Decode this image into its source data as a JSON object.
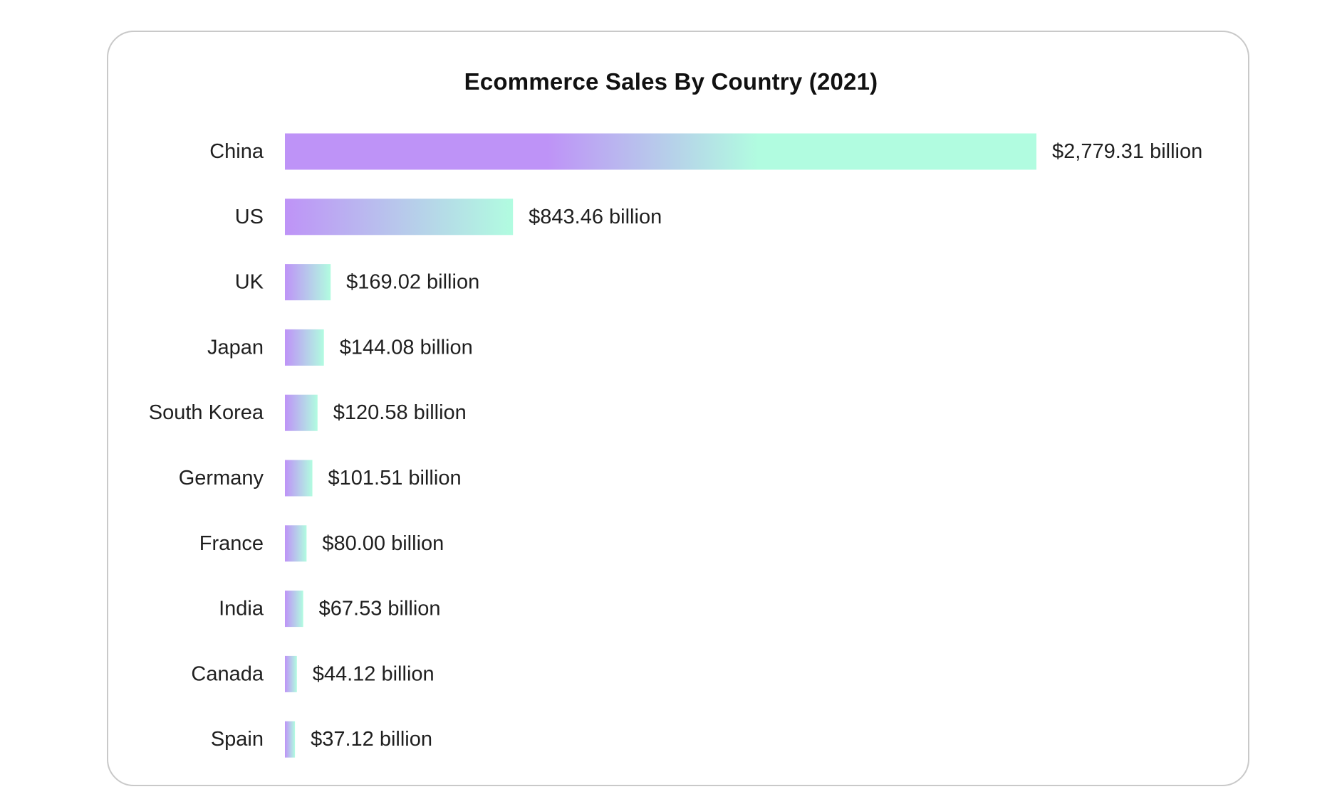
{
  "chart_data": {
    "type": "bar",
    "orientation": "horizontal",
    "title": "Ecommerce Sales By Country (2021)",
    "xlabel": "",
    "ylabel": "",
    "categories": [
      "China",
      "US",
      "UK",
      "Japan",
      "South Korea",
      "Germany",
      "France",
      "India",
      "Canada",
      "Spain"
    ],
    "values": [
      2779.31,
      843.46,
      169.02,
      144.08,
      120.58,
      101.51,
      80.0,
      67.53,
      44.12,
      37.12
    ],
    "value_labels": [
      "$2,779.31 billion",
      "$843.46 billion",
      "$169.02 billion",
      "$144.08 billion",
      "$120.58 billion",
      "$101.51 billion",
      "$80.00 billion",
      "$67.53 billion",
      "$44.12 billion",
      "$37.12 billion"
    ],
    "unit": "billion USD",
    "grid": false,
    "legend": "none",
    "colors": {
      "gradient_start": "#BE93F7",
      "gradient_end": "#B1FCE0"
    }
  }
}
